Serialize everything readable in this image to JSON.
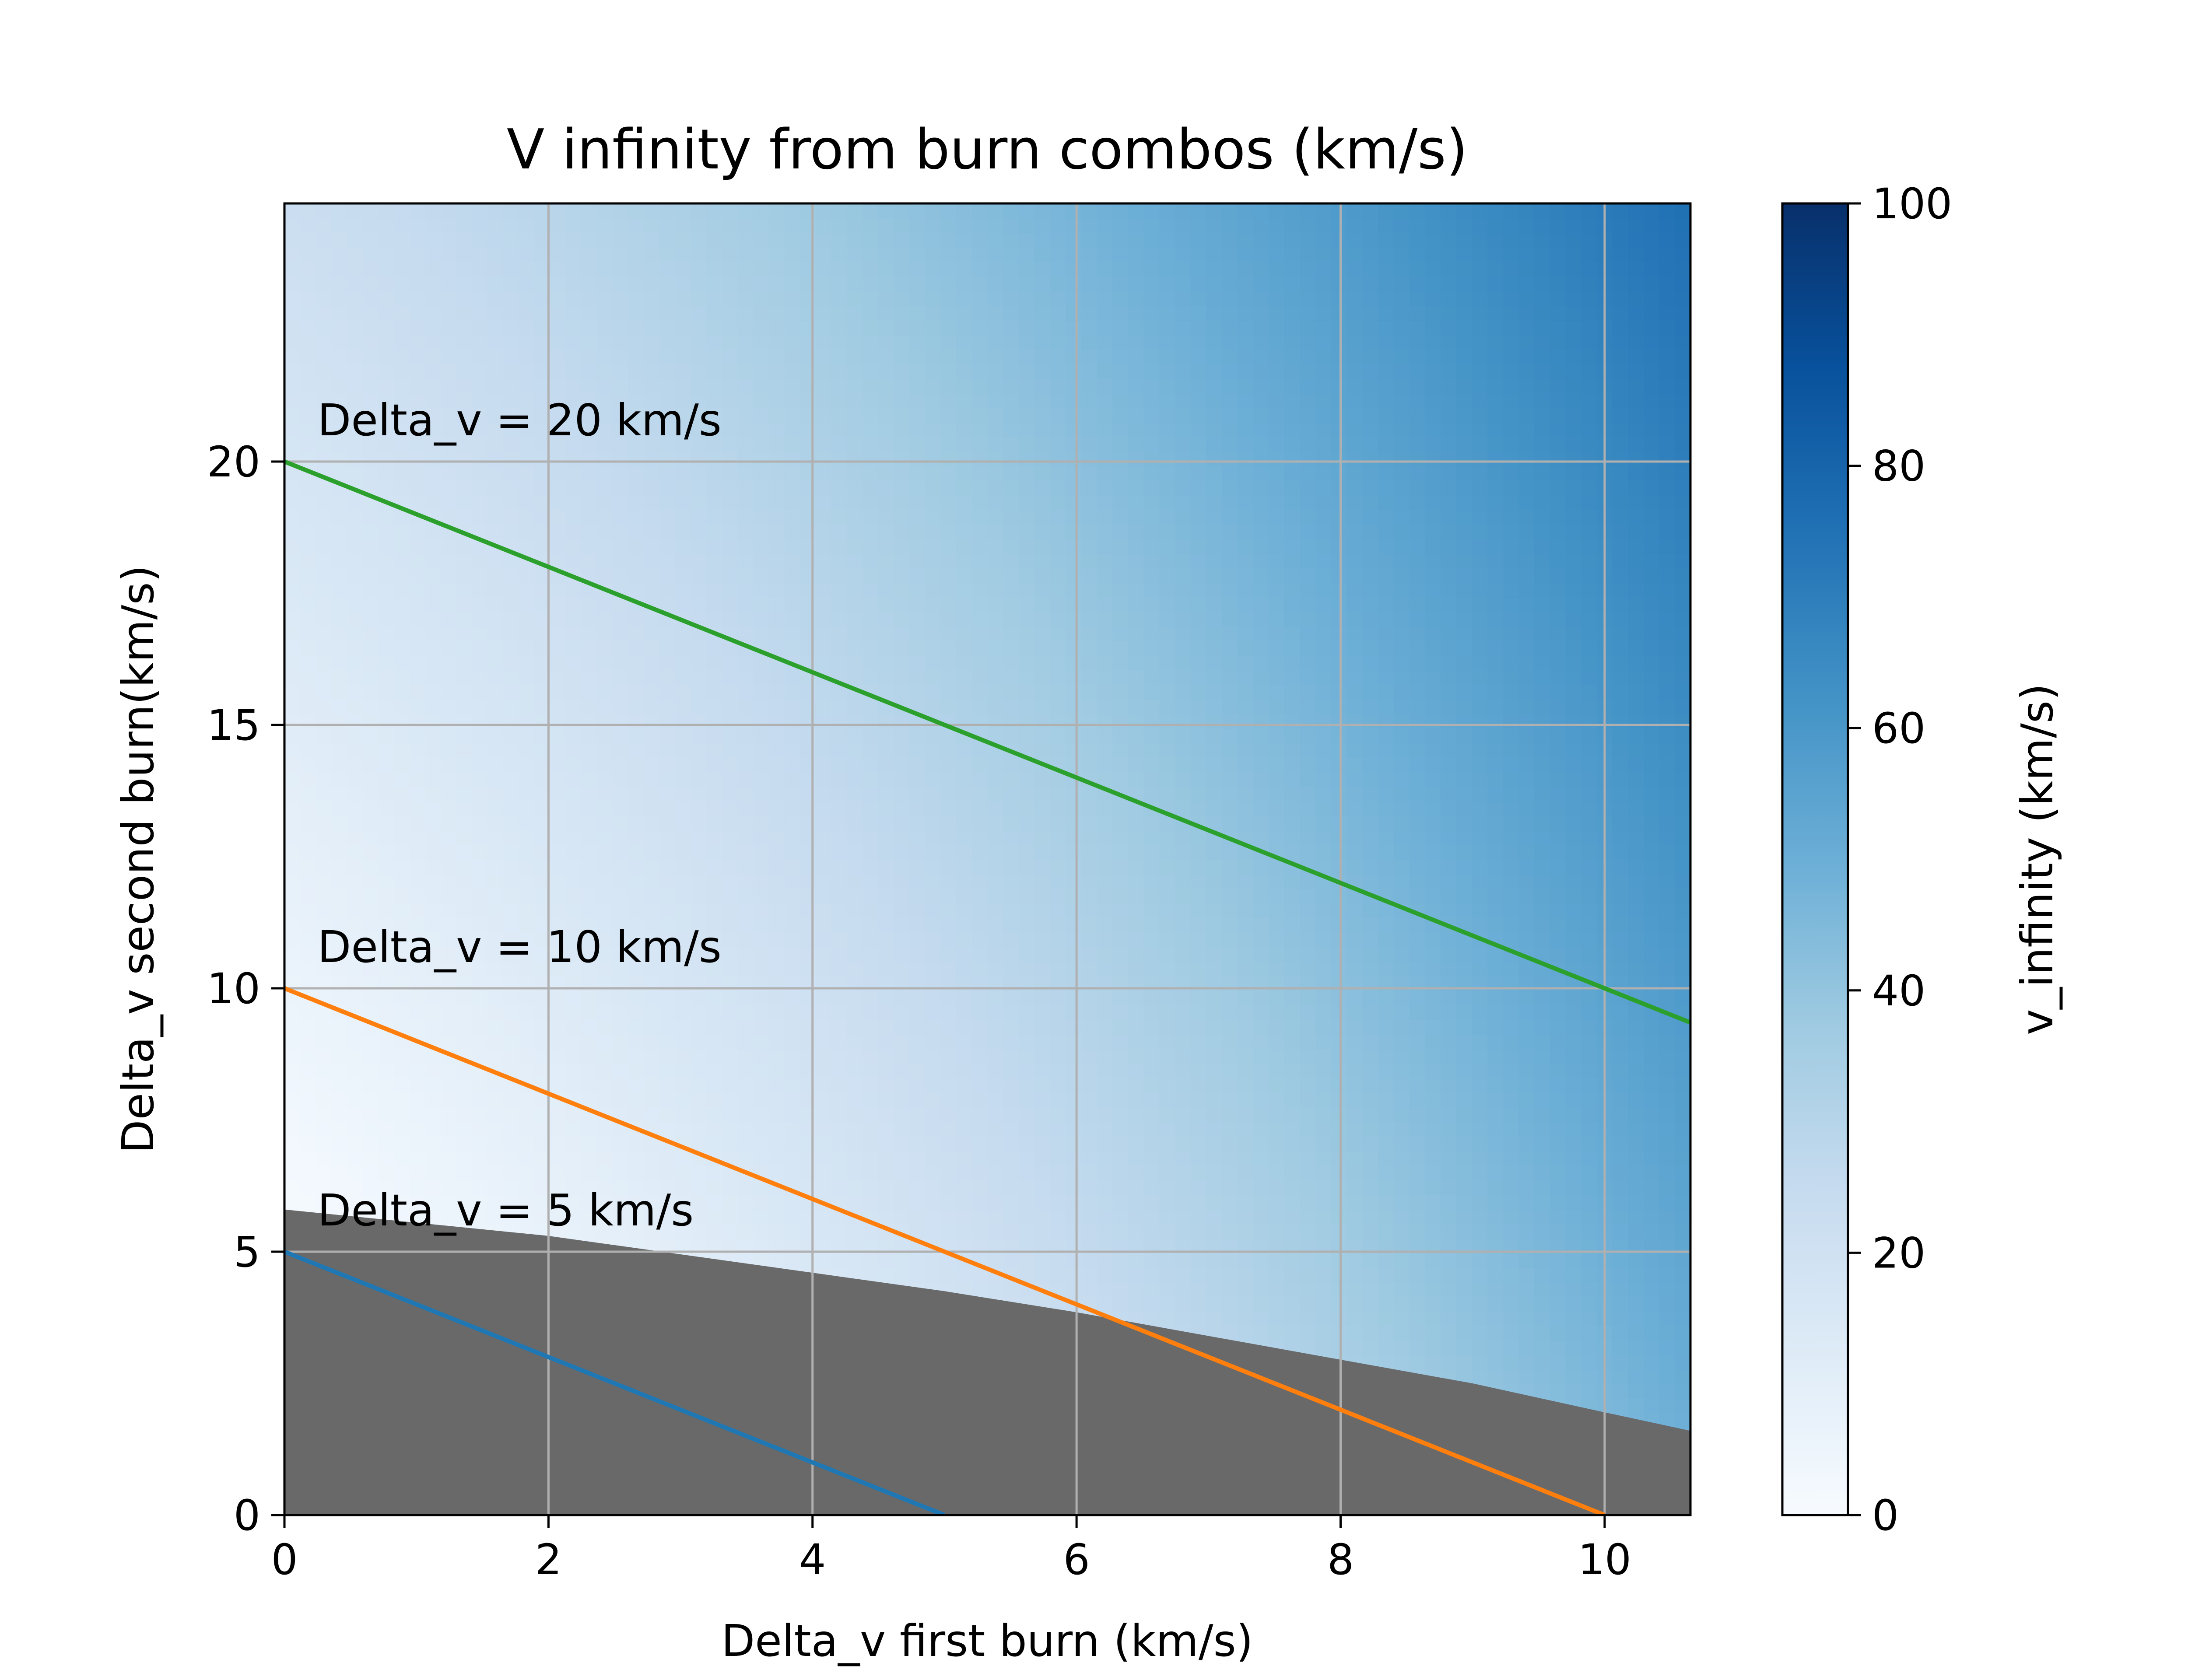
{
  "chart_data": {
    "type": "heatmap",
    "title": "V infinity from burn combos (km/s)",
    "xlabel": "Delta_v first burn (km/s)",
    "ylabel": "Delta_v second burn(km/s)",
    "xlim": [
      0,
      10.65
    ],
    "ylim": [
      0,
      24.9
    ],
    "x_ticks": [
      0,
      2,
      4,
      6,
      8,
      10
    ],
    "y_ticks": [
      0,
      5,
      10,
      15,
      20
    ],
    "grid": true,
    "colormap": "Blues",
    "colorbar": {
      "label": "v_infinity (km/s)",
      "range": [
        0,
        100
      ],
      "ticks": [
        0,
        20,
        40,
        60,
        80,
        100
      ]
    },
    "masked_region": {
      "color": "#696969",
      "x": [
        0,
        1,
        2,
        3,
        4,
        5,
        6,
        7,
        8,
        9,
        10,
        10.65
      ],
      "y": [
        5.8,
        5.55,
        5.3,
        4.95,
        4.6,
        4.25,
        3.85,
        3.4,
        2.95,
        2.5,
        1.95,
        1.6
      ]
    },
    "series": [
      {
        "name": "Delta_v = 5 km/s",
        "color": "#1f77b4",
        "x": [
          0,
          5
        ],
        "y": [
          5,
          0
        ]
      },
      {
        "name": "Delta_v = 10 km/s",
        "color": "#ff7f0e",
        "x": [
          0,
          10
        ],
        "y": [
          10,
          0
        ]
      },
      {
        "name": "Delta_v = 20 km/s",
        "color": "#2ca02c",
        "x": [
          0,
          10.65
        ],
        "y": [
          20,
          9.35
        ]
      }
    ],
    "annotations": [
      {
        "text": "Delta_v = 20 km/s",
        "x": 0.25,
        "y": 20.5
      },
      {
        "text": "Delta_v = 10 km/s",
        "x": 0.25,
        "y": 10.5
      },
      {
        "text": "Delta_v = 5 km/s",
        "x": 0.25,
        "y": 5.5
      }
    ]
  }
}
